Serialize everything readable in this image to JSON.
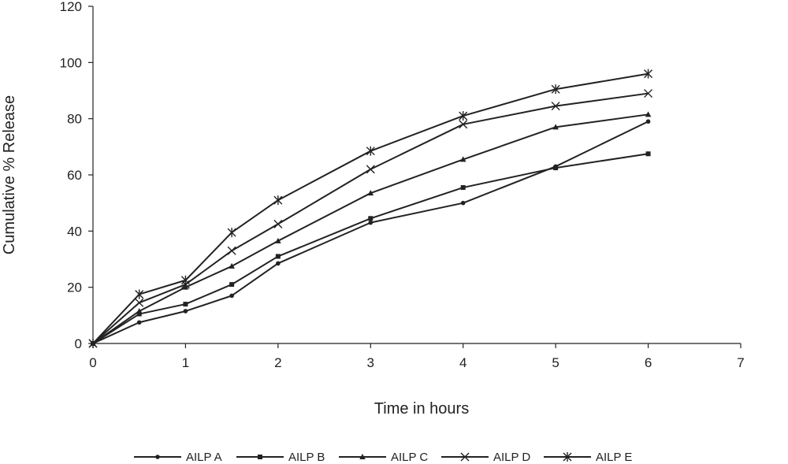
{
  "chart_data": {
    "type": "line",
    "title": "",
    "xlabel": "Time in hours",
    "ylabel": "Cumulative % Release",
    "xlim": [
      0,
      7
    ],
    "ylim": [
      0,
      120
    ],
    "xticks": [
      0,
      1,
      2,
      3,
      4,
      5,
      6,
      7
    ],
    "yticks": [
      0,
      20,
      40,
      60,
      80,
      100,
      120
    ],
    "grid": false,
    "legend_position": "bottom",
    "line_color": "#222222",
    "series": [
      {
        "name": "AILP A",
        "marker": "dot",
        "x": [
          0,
          0.5,
          1,
          1.5,
          2,
          3,
          4,
          5,
          6
        ],
        "y": [
          0,
          7.5,
          11.5,
          17,
          28.5,
          43,
          50,
          63,
          79
        ]
      },
      {
        "name": "AILP B",
        "marker": "square",
        "x": [
          0,
          0.5,
          1,
          1.5,
          2,
          3,
          4,
          5,
          6
        ],
        "y": [
          0,
          10.5,
          14,
          21,
          31,
          44.5,
          55.5,
          62.5,
          67.5
        ]
      },
      {
        "name": "AILP C",
        "marker": "triangle",
        "x": [
          0,
          0.5,
          1,
          1.5,
          2,
          3,
          4,
          5,
          6
        ],
        "y": [
          0,
          11.5,
          20,
          27.5,
          36.5,
          53.5,
          65.5,
          77,
          81.5
        ]
      },
      {
        "name": "AILP D",
        "marker": "x",
        "x": [
          0,
          0.5,
          1,
          1.5,
          2,
          3,
          4,
          5,
          6
        ],
        "y": [
          0,
          14.5,
          21,
          33,
          42.5,
          62,
          78,
          84.5,
          89
        ]
      },
      {
        "name": "AILP E",
        "marker": "star",
        "x": [
          0,
          0.5,
          1,
          1.5,
          2,
          3,
          4,
          5,
          6
        ],
        "y": [
          0,
          17.5,
          22.5,
          39.5,
          51,
          68.5,
          81,
          90.5,
          96
        ]
      }
    ]
  }
}
